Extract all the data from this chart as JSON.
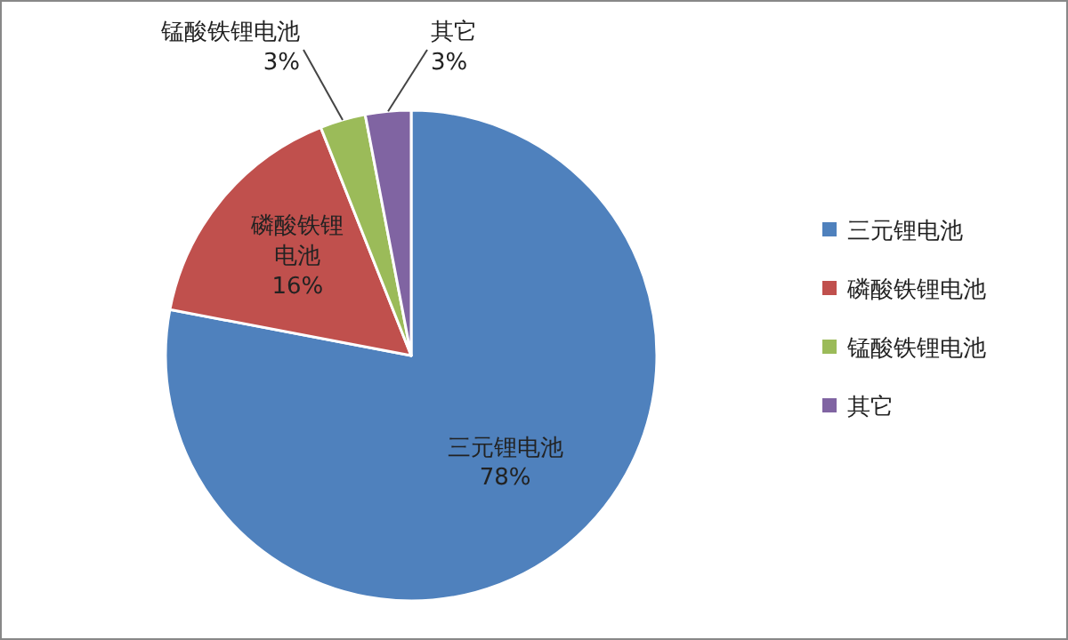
{
  "chart_data": {
    "type": "pie",
    "categories": [
      "三元锂电池",
      "磷酸铁锂电池",
      "锰酸铁锂电池",
      "其它"
    ],
    "values": [
      78,
      16,
      3,
      3
    ],
    "value_labels": [
      "78%",
      "16%",
      "3%",
      "3%"
    ],
    "colors": [
      "#4f81bd",
      "#c0504d",
      "#9bbb59",
      "#8064a2"
    ],
    "legend": "right"
  }
}
